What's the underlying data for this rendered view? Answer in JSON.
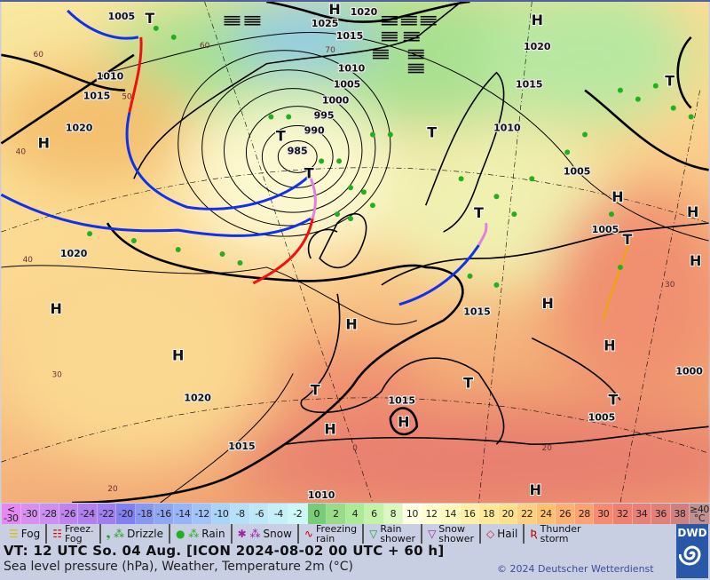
{
  "map": {
    "pressure_labels": [
      "1005",
      "1025",
      "1020",
      "1015",
      "1010",
      "1015",
      "1020",
      "1010",
      "1005",
      "1000",
      "995",
      "990",
      "985",
      "1020",
      "1015",
      "1010",
      "1005",
      "1005",
      "1020",
      "1015",
      "1020",
      "1015",
      "1005",
      "1000",
      "1015",
      "1010"
    ],
    "high_label": "H",
    "low_label": "T",
    "temperature_labels": [
      "60",
      "60",
      "70",
      "50",
      "40",
      "40",
      "30",
      "20",
      "0",
      "20",
      "30"
    ]
  },
  "temperature_scale": {
    "labels": [
      "<\n-30",
      "-30",
      "-28",
      "-26",
      "-24",
      "-22",
      "-20",
      "-18",
      "-16",
      "-14",
      "-12",
      "-10",
      "-8",
      "-6",
      "-4",
      "-2",
      "0",
      "2",
      "4",
      "6",
      "8",
      "10",
      "12",
      "14",
      "16",
      "18",
      "20",
      "22",
      "24",
      "26",
      "28",
      "30",
      "32",
      "34",
      "36",
      "38",
      "≥40\n°C"
    ],
    "colors": [
      "#e488f4",
      "#d890f0",
      "#cc90f0",
      "#c084f0",
      "#b080f0",
      "#a080f0",
      "#8080f0",
      "#8898f0",
      "#90a8f0",
      "#98b4f8",
      "#a0c4f8",
      "#a8d4f8",
      "#b4e0f8",
      "#bce8f8",
      "#c4f0f8",
      "#ccf8f8",
      "#78cc78",
      "#98dc88",
      "#acea98",
      "#c4f2a8",
      "#dcf8c0",
      "#ffffe4",
      "#fffcd0",
      "#fff8bc",
      "#fff0a8",
      "#ffe898",
      "#ffe08c",
      "#ffd080",
      "#ffc070",
      "#ffb070",
      "#ffa070",
      "#f88a70",
      "#f08070",
      "#e88078",
      "#e08078",
      "#d08080",
      "#c09090"
    ]
  },
  "weather_legend": [
    {
      "label": "Fog",
      "icon": "fog-icon",
      "symbol": "☰",
      "color": "#d8c000"
    },
    {
      "label": "Freez.\nFog",
      "icon": "freezing-fog-icon",
      "symbol": "☷",
      "color": "#e00000"
    },
    {
      "label": "Drizzle",
      "icon": "drizzle-icon",
      "symbol": "❟ ⁂",
      "color": "#20a020"
    },
    {
      "label": "Rain",
      "icon": "rain-icon",
      "symbol": "● ⁂",
      "color": "#20b020"
    },
    {
      "label": "Snow",
      "icon": "snow-icon",
      "symbol": "✱ ⁂",
      "color": "#a020a0"
    },
    {
      "label": "Freezing\nrain",
      "icon": "freezing-rain-icon",
      "symbol": "∿",
      "color": "#c00000"
    },
    {
      "label": "Rain\nshower",
      "icon": "rain-shower-icon",
      "symbol": "▽",
      "color": "#20a020"
    },
    {
      "label": "Snow\nshower",
      "icon": "snow-shower-icon",
      "symbol": "▽",
      "color": "#a020a0"
    },
    {
      "label": "Hail",
      "icon": "hail-icon",
      "symbol": "◇",
      "color": "#c02040"
    },
    {
      "label": "Thunder\nstorm",
      "icon": "thunderstorm-icon",
      "symbol": "Ʀ",
      "color": "#c00000"
    }
  ],
  "footer": {
    "valid_time": "VT: 12 UTC So.  04 Aug. [ICON 2024-08-02  00 UTC + 60 h]",
    "description": "Sea level pressure (hPa), Weather, Temperature 2m (°C)",
    "copyright": "© 2024 Deutscher Wetterdienst",
    "logo_text": "DWD"
  },
  "colors": {
    "cold_front": "#1030f0",
    "warm_front": "#f01010",
    "occlusion": "#e080e0",
    "frame": "#5060a0"
  }
}
